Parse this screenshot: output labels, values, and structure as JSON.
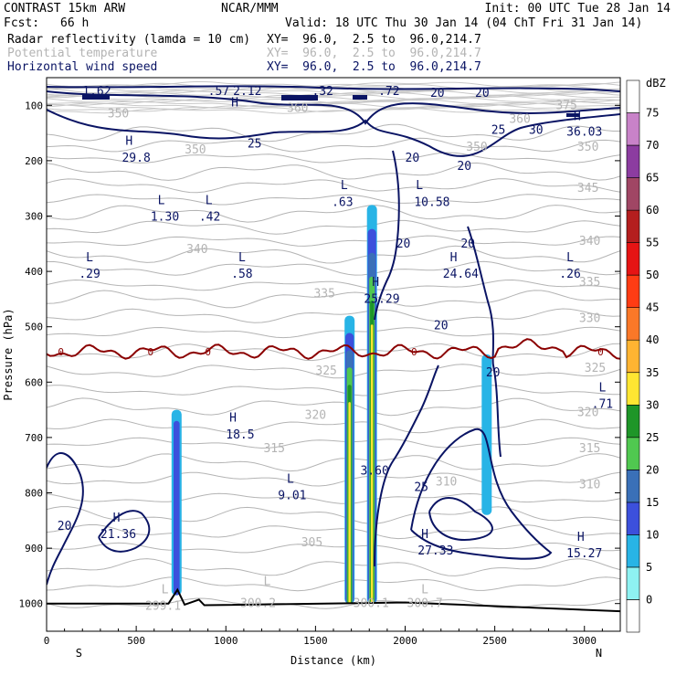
{
  "header": {
    "model": "CONTRAST 15km ARW",
    "center": "NCAR/MMM",
    "init": "Init: 00 UTC Tue 28 Jan 14",
    "fcst_label": "Fcst:",
    "fcst_value": "66 h",
    "valid": "Valid: 18 UTC Thu 30 Jan 14 (04 ChT Fri 31 Jan 14)"
  },
  "fields": [
    {
      "name": "Radar reflectivity (lamda = 10 cm)",
      "xy": "XY=  96.0,  2.5 to  96.0,214.7",
      "color": "#000000"
    },
    {
      "name": "Potential temperature",
      "xy": "XY=  96.0,  2.5 to  96.0,214.7",
      "color": "#b4b4b4"
    },
    {
      "name": "Horizontal wind speed",
      "xy": "XY=  96.0,  2.5 to  96.0,214.7",
      "color": "#0a1464"
    }
  ],
  "chart_data": {
    "type": "cross-section",
    "xlabel": "Distance (km)",
    "ylabel": "Pressure (hPa)",
    "xlim": [
      0,
      3200
    ],
    "ylim": [
      1050,
      50
    ],
    "xticks": [
      0,
      500,
      1000,
      1500,
      2000,
      2500,
      3000
    ],
    "yticks": [
      100,
      200,
      300,
      400,
      500,
      600,
      700,
      800,
      900,
      1000
    ],
    "x_end_labels": {
      "left": "S",
      "right": "N"
    },
    "colorbar": {
      "unit": "dBZ",
      "levels": [
        0,
        5,
        10,
        15,
        20,
        25,
        30,
        35,
        40,
        45,
        50,
        55,
        60,
        65,
        70,
        75
      ],
      "colors": [
        "#ffffff",
        "#8ef2f2",
        "#28b4e6",
        "#3c50dc",
        "#3a70b8",
        "#50c850",
        "#1e9628",
        "#ffe632",
        "#ffb432",
        "#fa7828",
        "#ff3c14",
        "#e61414",
        "#b41e1e",
        "#a04664",
        "#8c3ca0",
        "#c882c8",
        "#ffffff"
      ]
    },
    "freezing_level": {
      "label": "0",
      "color": "#8b0000",
      "pressure_hPa": 545
    },
    "terrain_color": "#000000",
    "theta_labels": [
      {
        "text": "375",
        "x": 2900,
        "p": 100
      },
      {
        "text": "360",
        "x": 1400,
        "p": 105
      },
      {
        "text": "360",
        "x": 2640,
        "p": 125
      },
      {
        "text": "350",
        "x": 400,
        "p": 115
      },
      {
        "text": "350",
        "x": 830,
        "p": 180
      },
      {
        "text": "350",
        "x": 2400,
        "p": 175
      },
      {
        "text": "350",
        "x": 3020,
        "p": 175
      },
      {
        "text": "345",
        "x": 3020,
        "p": 250
      },
      {
        "text": "340",
        "x": 840,
        "p": 360
      },
      {
        "text": "340",
        "x": 3030,
        "p": 345
      },
      {
        "text": "335",
        "x": 1550,
        "p": 440
      },
      {
        "text": "335",
        "x": 3030,
        "p": 420
      },
      {
        "text": "330",
        "x": 3030,
        "p": 485
      },
      {
        "text": "325",
        "x": 1560,
        "p": 580
      },
      {
        "text": "325",
        "x": 3060,
        "p": 575
      },
      {
        "text": "320",
        "x": 1500,
        "p": 660
      },
      {
        "text": "320",
        "x": 3020,
        "p": 655
      },
      {
        "text": "315",
        "x": 1270,
        "p": 720
      },
      {
        "text": "315",
        "x": 3030,
        "p": 720
      },
      {
        "text": "310",
        "x": 3030,
        "p": 785
      },
      {
        "text": "310",
        "x": 2230,
        "p": 780
      },
      {
        "text": "305",
        "x": 1480,
        "p": 890
      },
      {
        "text": "300.2",
        "x": 1180,
        "p": 1000
      },
      {
        "text": "299.1",
        "x": 650,
        "p": 1005
      },
      {
        "text": "300.1",
        "x": 1810,
        "p": 1000
      },
      {
        "text": "300.7",
        "x": 2110,
        "p": 1000
      },
      {
        "text": "L",
        "x": 660,
        "p": 975
      },
      {
        "text": "L",
        "x": 1230,
        "p": 960
      },
      {
        "text": "L",
        "x": 2110,
        "p": 975
      }
    ],
    "wind_labels": [
      {
        "text": "1.62",
        "x": 280,
        "p": 75
      },
      {
        "text": ".57",
        "x": 960,
        "p": 75
      },
      {
        "text": "2.12",
        "x": 1120,
        "p": 75
      },
      {
        "text": ".32",
        "x": 1540,
        "p": 75
      },
      {
        "text": ".72",
        "x": 1910,
        "p": 75
      },
      {
        "text": "20",
        "x": 2180,
        "p": 78
      },
      {
        "text": "20",
        "x": 2430,
        "p": 78
      },
      {
        "text": "H",
        "x": 1050,
        "p": 95
      },
      {
        "text": "H",
        "x": 2960,
        "p": 120
      },
      {
        "text": "36.03",
        "x": 3000,
        "p": 148
      },
      {
        "text": "25",
        "x": 2520,
        "p": 145
      },
      {
        "text": "30",
        "x": 2730,
        "p": 145
      },
      {
        "text": "25",
        "x": 1160,
        "p": 170
      },
      {
        "text": "H",
        "x": 460,
        "p": 165
      },
      {
        "text": "29.8",
        "x": 500,
        "p": 195
      },
      {
        "text": "20",
        "x": 2040,
        "p": 195
      },
      {
        "text": "20",
        "x": 2330,
        "p": 210
      },
      {
        "text": "L",
        "x": 640,
        "p": 272
      },
      {
        "text": "1.30",
        "x": 660,
        "p": 302
      },
      {
        "text": "L",
        "x": 905,
        "p": 272
      },
      {
        "text": ".42",
        "x": 910,
        "p": 302
      },
      {
        "text": "L",
        "x": 1660,
        "p": 245
      },
      {
        "text": ".63",
        "x": 1650,
        "p": 275
      },
      {
        "text": "L",
        "x": 2080,
        "p": 245
      },
      {
        "text": "10.58",
        "x": 2150,
        "p": 275
      },
      {
        "text": "20",
        "x": 1990,
        "p": 350
      },
      {
        "text": "20",
        "x": 2350,
        "p": 350
      },
      {
        "text": "L",
        "x": 240,
        "p": 375
      },
      {
        "text": ".29",
        "x": 240,
        "p": 405
      },
      {
        "text": "L",
        "x": 1090,
        "p": 375
      },
      {
        "text": ".58",
        "x": 1090,
        "p": 405
      },
      {
        "text": "H",
        "x": 2270,
        "p": 375
      },
      {
        "text": "24.64",
        "x": 2310,
        "p": 405
      },
      {
        "text": "L",
        "x": 2920,
        "p": 375
      },
      {
        "text": ".26",
        "x": 2920,
        "p": 405
      },
      {
        "text": "H",
        "x": 1835,
        "p": 420
      },
      {
        "text": "25.29",
        "x": 1870,
        "p": 450
      },
      {
        "text": "20",
        "x": 2200,
        "p": 498
      },
      {
        "text": "20",
        "x": 2490,
        "p": 583
      },
      {
        "text": "L",
        "x": 3100,
        "p": 610
      },
      {
        "text": ".71",
        "x": 3100,
        "p": 640
      },
      {
        "text": "H",
        "x": 1040,
        "p": 665
      },
      {
        "text": "18.5",
        "x": 1080,
        "p": 695
      },
      {
        "text": "3.60",
        "x": 1830,
        "p": 760
      },
      {
        "text": "L",
        "x": 1360,
        "p": 775
      },
      {
        "text": "9.01",
        "x": 1370,
        "p": 805
      },
      {
        "text": "25",
        "x": 2090,
        "p": 790
      },
      {
        "text": "20",
        "x": 100,
        "p": 860
      },
      {
        "text": "H",
        "x": 390,
        "p": 845
      },
      {
        "text": "21.36",
        "x": 400,
        "p": 875
      },
      {
        "text": "H",
        "x": 2110,
        "p": 875
      },
      {
        "text": "27.33",
        "x": 2170,
        "p": 905
      },
      {
        "text": "H",
        "x": 2980,
        "p": 880
      },
      {
        "text": "15.27",
        "x": 3000,
        "p": 910
      }
    ],
    "reflectivity_cores": [
      {
        "name": "core-720km",
        "x_center": 725,
        "p_top": 650,
        "p_bottom": 985,
        "max_dbz": 12
      },
      {
        "name": "core-1680km",
        "x_center": 1690,
        "p_top": 480,
        "p_bottom": 1000,
        "max_dbz": 34
      },
      {
        "name": "core-1810km",
        "x_center": 1815,
        "p_top": 280,
        "p_bottom": 1000,
        "max_dbz": 34
      },
      {
        "name": "core-2450km",
        "x_center": 2455,
        "p_top": 550,
        "p_bottom": 840,
        "max_dbz": 7
      }
    ]
  }
}
